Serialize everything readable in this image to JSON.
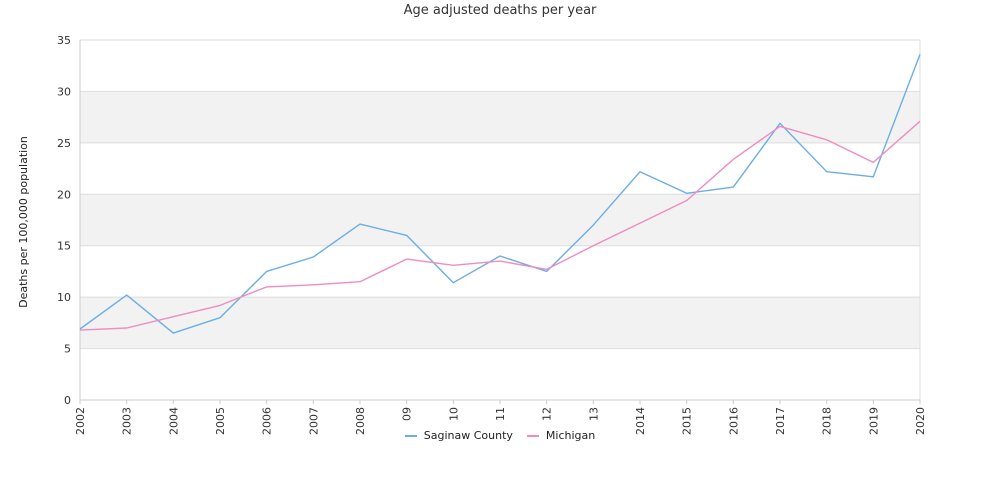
{
  "chart_data": {
    "type": "line",
    "title": "Age adjusted deaths per year",
    "ylabel": "Deaths per 100,000 population",
    "xlabel": "",
    "categories": [
      "2002",
      "2003",
      "2004",
      "2005",
      "2006",
      "2007",
      "2008",
      "09",
      "10",
      "11",
      "12",
      "13",
      "2014",
      "2015",
      "2016",
      "2017",
      "2018",
      "2019",
      "2020"
    ],
    "ylim": [
      0,
      35
    ],
    "yticks": [
      0,
      5,
      10,
      15,
      20,
      25,
      30,
      35
    ],
    "grid": true,
    "legend_position": "bottom",
    "series": [
      {
        "name": "Saginaw County",
        "color": "#6aaee8",
        "values": [
          6.9,
          10.2,
          6.5,
          8.0,
          12.5,
          13.9,
          17.1,
          16.0,
          11.4,
          14.0,
          12.5,
          17.0,
          22.2,
          20.1,
          20.7,
          26.9,
          22.2,
          21.7,
          33.6
        ]
      },
      {
        "name": "Michigan",
        "color": "#f08cc0",
        "values": [
          6.8,
          7.0,
          8.1,
          9.2,
          11.0,
          11.2,
          11.5,
          13.7,
          13.1,
          13.5,
          12.7,
          15.0,
          17.2,
          19.4,
          23.4,
          26.6,
          25.3,
          23.1,
          27.1
        ]
      }
    ]
  }
}
